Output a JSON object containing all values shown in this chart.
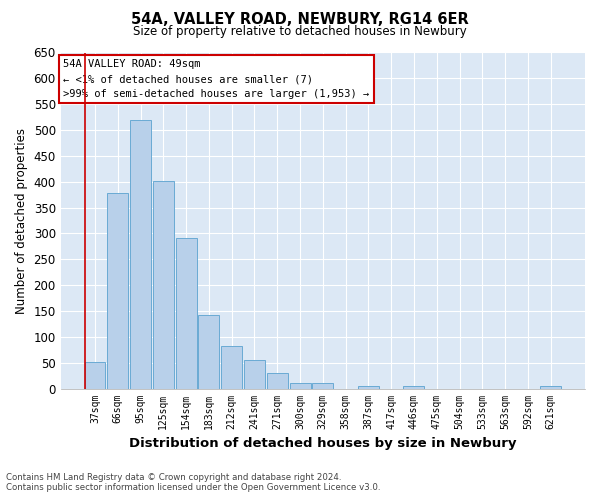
{
  "title": "54A, VALLEY ROAD, NEWBURY, RG14 6ER",
  "subtitle": "Size of property relative to detached houses in Newbury",
  "xlabel": "Distribution of detached houses by size in Newbury",
  "ylabel": "Number of detached properties",
  "bin_labels": [
    "37sqm",
    "66sqm",
    "95sqm",
    "125sqm",
    "154sqm",
    "183sqm",
    "212sqm",
    "241sqm",
    "271sqm",
    "300sqm",
    "329sqm",
    "358sqm",
    "387sqm",
    "417sqm",
    "446sqm",
    "475sqm",
    "504sqm",
    "533sqm",
    "563sqm",
    "592sqm",
    "621sqm"
  ],
  "bar_values": [
    52,
    378,
    520,
    402,
    292,
    143,
    82,
    55,
    30,
    10,
    10,
    0,
    5,
    0,
    5,
    0,
    0,
    0,
    0,
    0,
    5
  ],
  "bar_color": "#b8d0ea",
  "bar_edge_color": "#6aaad4",
  "bg_color": "#dce8f5",
  "grid_color": "#ffffff",
  "annotation_box_color": "#cc0000",
  "annotation_line1": "54A VALLEY ROAD: 49sqm",
  "annotation_line2": "← <1% of detached houses are smaller (7)",
  "annotation_line3": ">99% of semi-detached houses are larger (1,953) →",
  "ylim": [
    0,
    650
  ],
  "yticks": [
    0,
    50,
    100,
    150,
    200,
    250,
    300,
    350,
    400,
    450,
    500,
    550,
    600,
    650
  ],
  "footnote1": "Contains HM Land Registry data © Crown copyright and database right 2024.",
  "footnote2": "Contains public sector information licensed under the Open Government Licence v3.0."
}
